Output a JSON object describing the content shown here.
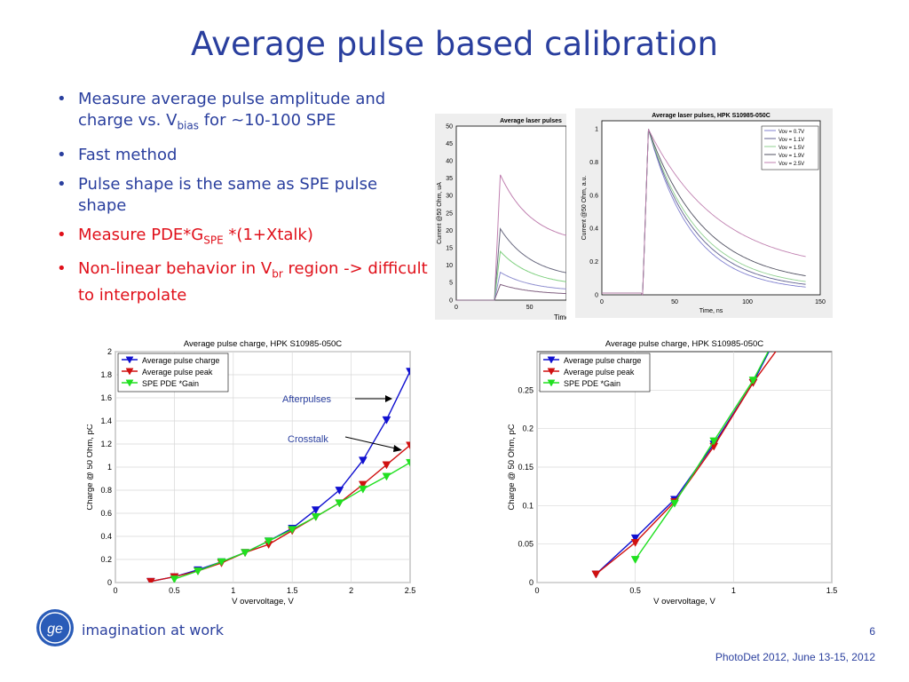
{
  "slide": {
    "title": "Average  pulse based calibration",
    "tagline": "imagination at work",
    "page_number": "6",
    "footer": "PhotoDet 2012, June 13-15, 2012"
  },
  "bullets": [
    {
      "pre": "Measure average pulse amplitude and charge vs. V",
      "sub": "bias",
      "post": " for ~10-100 SPE",
      "color": "#2a3f9e"
    },
    {
      "pre": "Fast method",
      "sub": "",
      "post": "",
      "color": "#2a3f9e"
    },
    {
      "pre": "Pulse shape is the same as SPE pulse shape",
      "sub": "",
      "post": "",
      "color": "#2a3f9e"
    },
    {
      "pre": "Measure PDE*G",
      "sub": "SPE",
      "post": " *(1+Xtalk)",
      "color": "#e0101a"
    },
    {
      "pre": "Non-linear behavior in V",
      "sub": "br",
      "post": " region -> difficult to interpolate",
      "color": "#e0101a"
    }
  ],
  "colors": {
    "accent": "#2a3f9e",
    "alert": "#e0101a"
  },
  "chart_data": [
    {
      "type": "line",
      "title": "Average laser pulses",
      "xlabel": "Time",
      "ylabel": "Current @50 Ohm, uA",
      "xlim": [
        0,
        75
      ],
      "ylim": [
        0,
        50
      ],
      "xticks": [
        0,
        50
      ],
      "yticks": [
        0,
        5,
        10,
        15,
        20,
        25,
        30,
        35,
        40,
        45,
        50
      ],
      "pulse_start": 26,
      "series": [
        {
          "peak": 36,
          "tail": 16,
          "color": "#c080b0"
        },
        {
          "peak": 20.5,
          "tail": 6,
          "color": "#6a6a80"
        },
        {
          "peak": 14,
          "tail": 4,
          "color": "#80d080"
        },
        {
          "peak": 8,
          "tail": 2.5,
          "color": "#9090d0"
        },
        {
          "peak": 4.5,
          "tail": 1.5,
          "color": "#806080"
        }
      ]
    },
    {
      "type": "line",
      "title": "Average laser pulses, HPK S10985-050C",
      "xlabel": "Time, ns",
      "ylabel": "Current @50 Ohm, a.u.",
      "xlim": [
        0,
        150
      ],
      "ylim": [
        0,
        1.05
      ],
      "xticks": [
        0,
        50,
        100,
        150
      ],
      "yticks": [
        0,
        0.2,
        0.4,
        0.6,
        0.8,
        1
      ],
      "pulse_start": 28,
      "peak_time": 32,
      "series": [
        {
          "name": "Vov = 0.7V",
          "tau": 30,
          "floor": 0.02,
          "color": "#8080d0"
        },
        {
          "name": "Vov = 1.1V",
          "tau": 32,
          "floor": 0.03,
          "color": "#606090"
        },
        {
          "name": "Vov = 1.5V",
          "tau": 34,
          "floor": 0.04,
          "color": "#90d090"
        },
        {
          "name": "Vov = 1.9V",
          "tau": 38,
          "floor": 0.06,
          "color": "#505060"
        },
        {
          "name": "Vov = 2.5V",
          "tau": 48,
          "floor": 0.14,
          "color": "#c080b0"
        }
      ]
    },
    {
      "type": "line",
      "title": "Average pulse charge, HPK S10985-050C",
      "xlabel": "V overvoltage, V",
      "ylabel": "Charge @ 50 Ohm, pC",
      "xlim": [
        0,
        2.5
      ],
      "ylim": [
        0,
        2
      ],
      "xticks": [
        0,
        0.5,
        1,
        1.5,
        2,
        2.5
      ],
      "yticks": [
        0,
        0.2,
        0.4,
        0.6,
        0.8,
        1,
        1.2,
        1.4,
        1.6,
        1.8,
        2
      ],
      "legend": "top-left",
      "annotations": [
        "Afterpulses",
        "Crosstalk"
      ],
      "series": [
        {
          "name": "Average pulse charge",
          "color": "#1010d0",
          "x": [
            0.3,
            0.5,
            0.7,
            0.9,
            1.1,
            1.3,
            1.5,
            1.7,
            1.9,
            2.1,
            2.3,
            2.5
          ],
          "y": [
            0.01,
            0.05,
            0.11,
            0.18,
            0.26,
            0.36,
            0.47,
            0.63,
            0.8,
            1.06,
            1.41,
            1.83
          ]
        },
        {
          "name": "Average pulse peak",
          "color": "#d01010",
          "x": [
            0.3,
            0.5,
            0.7,
            0.9,
            1.1,
            1.3,
            1.5,
            1.7,
            1.9,
            2.1,
            2.3,
            2.5
          ],
          "y": [
            0.01,
            0.05,
            0.1,
            0.17,
            0.26,
            0.33,
            0.45,
            0.57,
            0.69,
            0.85,
            1.02,
            1.19
          ]
        },
        {
          "name": "SPE PDE *Gain",
          "color": "#20e020",
          "x": [
            0.5,
            0.7,
            0.9,
            1.1,
            1.3,
            1.5,
            1.7,
            1.9,
            2.1,
            2.3,
            2.5
          ],
          "y": [
            0.03,
            0.1,
            0.18,
            0.26,
            0.36,
            0.46,
            0.57,
            0.69,
            0.81,
            0.92,
            1.04
          ]
        }
      ]
    },
    {
      "type": "line",
      "title": "Average pulse charge, HPK S10985-050C",
      "xlabel": "V overvoltage, V",
      "ylabel": "Charge @ 50 Ohm, pC",
      "xlim": [
        0,
        1.5
      ],
      "ylim": [
        0,
        0.3
      ],
      "xticks": [
        0,
        0.5,
        1,
        1.5
      ],
      "yticks": [
        0,
        0.05,
        0.1,
        0.15,
        0.2,
        0.25
      ],
      "legend": "top-left",
      "series": [
        {
          "name": "Average pulse charge",
          "color": "#1010d0",
          "x": [
            0.3,
            0.5,
            0.7,
            0.9,
            1.1,
            1.3
          ],
          "y": [
            0.011,
            0.058,
            0.108,
            0.18,
            0.26,
            0.36
          ]
        },
        {
          "name": "Average pulse peak",
          "color": "#d01010",
          "x": [
            0.3,
            0.5,
            0.7,
            0.9,
            1.1,
            1.3
          ],
          "y": [
            0.011,
            0.052,
            0.105,
            0.177,
            0.26,
            0.33
          ]
        },
        {
          "name": "SPE PDE *Gain",
          "color": "#20e020",
          "x": [
            0.5,
            0.7,
            0.9,
            1.1,
            1.3
          ],
          "y": [
            0.03,
            0.103,
            0.184,
            0.263,
            0.36
          ]
        }
      ]
    }
  ]
}
